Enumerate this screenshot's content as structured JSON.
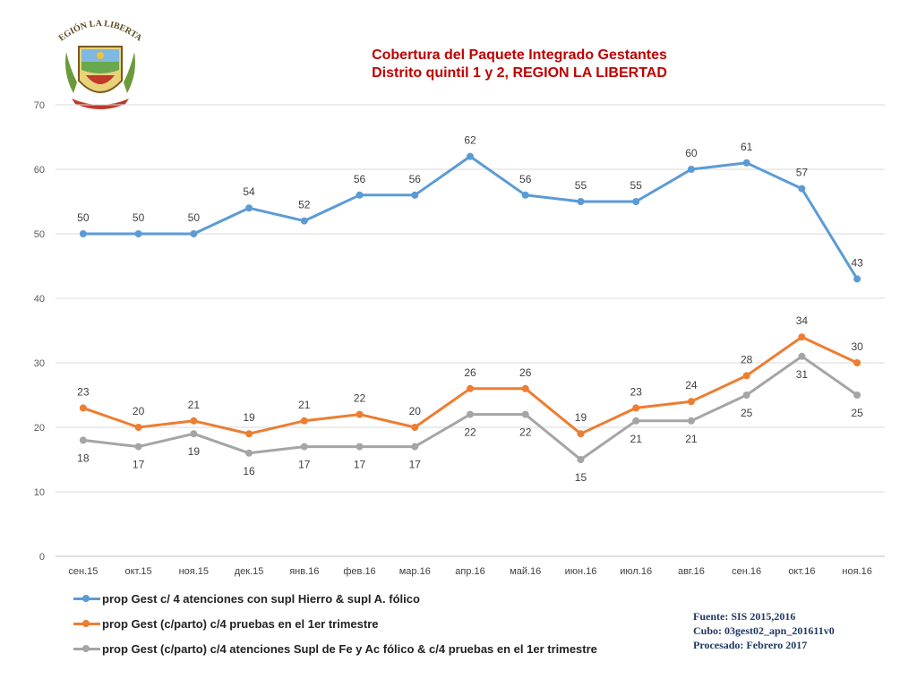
{
  "logo": {
    "caption": "REGIÓN LA LIBERTAD"
  },
  "title_lines": [
    "Cobertura del Paquete Integrado Gestantes",
    "Distrito quintil 1 y 2, REGION LA LIBERTAD"
  ],
  "chart_data": {
    "type": "line",
    "title": "Cobertura del Paquete Integrado Gestantes Distrito quintil 1 y 2, REGION LA LIBERTAD",
    "categories": [
      "сен.15",
      "окт.15",
      "ноя.15",
      "дек.15",
      "янв.16",
      "фев.16",
      "мар.16",
      "апр.16",
      "май.16",
      "июн.16",
      "июл.16",
      "авг.16",
      "сен.16",
      "окт.16",
      "ноя.16"
    ],
    "ylim": [
      0,
      70
    ],
    "yticks": [
      0,
      10,
      20,
      30,
      40,
      50,
      60,
      70
    ],
    "grid": true,
    "legend": "bottom",
    "series": [
      {
        "name": "prop Gest c/ 4 atenciones con supl Hierro & supl A. fólico",
        "color": "#5b9bd5",
        "label_pos": "above",
        "values": [
          50,
          50,
          50,
          54,
          52,
          56,
          56,
          62,
          56,
          55,
          55,
          60,
          61,
          57,
          43
        ]
      },
      {
        "name": "prop Gest (c/parto) c/4 pruebas en el 1er trimestre",
        "color": "#ed7d31",
        "label_pos": "above",
        "values": [
          23,
          20,
          21,
          19,
          21,
          22,
          20,
          26,
          26,
          19,
          23,
          24,
          28,
          34,
          30
        ]
      },
      {
        "name": "prop Gest (c/parto) c/4 atenciones Supl de Fe y Ac fólico & c/4 pruebas en el 1er trimestre",
        "color": "#a5a5a5",
        "label_pos": "below",
        "values": [
          18,
          17,
          19,
          16,
          17,
          17,
          17,
          22,
          22,
          15,
          21,
          21,
          25,
          31,
          25
        ]
      }
    ]
  },
  "source": {
    "lines": [
      "Fuente: SIS 2015,2016",
      "Cubo: 03gest02_apn_201611v0",
      "Procesado: Febrero 2017"
    ]
  }
}
